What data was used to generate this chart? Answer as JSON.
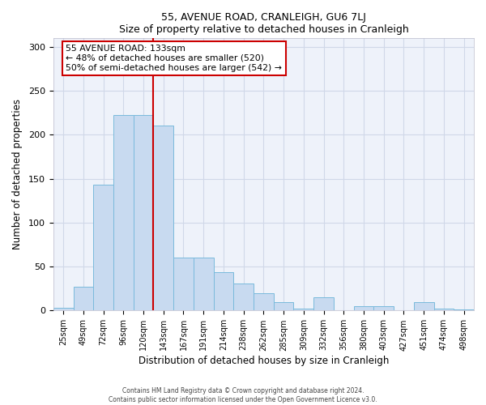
{
  "title": "55, AVENUE ROAD, CRANLEIGH, GU6 7LJ",
  "subtitle": "Size of property relative to detached houses in Cranleigh",
  "xlabel": "Distribution of detached houses by size in Cranleigh",
  "ylabel": "Number of detached properties",
  "bar_labels": [
    "25sqm",
    "49sqm",
    "72sqm",
    "96sqm",
    "120sqm",
    "143sqm",
    "167sqm",
    "191sqm",
    "214sqm",
    "238sqm",
    "262sqm",
    "285sqm",
    "309sqm",
    "332sqm",
    "356sqm",
    "380sqm",
    "403sqm",
    "427sqm",
    "451sqm",
    "474sqm",
    "498sqm"
  ],
  "bar_values": [
    3,
    27,
    143,
    222,
    222,
    210,
    60,
    60,
    44,
    31,
    20,
    10,
    2,
    15,
    0,
    5,
    5,
    0,
    10,
    2,
    1
  ],
  "bar_color": "#c8daf0",
  "bar_edge_color": "#7abadc",
  "vline_color": "#cc0000",
  "annotation_title": "55 AVENUE ROAD: 133sqm",
  "annotation_line1": "← 48% of detached houses are smaller (520)",
  "annotation_line2": "50% of semi-detached houses are larger (542) →",
  "annotation_box_facecolor": "#ffffff",
  "annotation_box_edgecolor": "#cc0000",
  "ylim": [
    0,
    310
  ],
  "yticks": [
    0,
    50,
    100,
    150,
    200,
    250,
    300
  ],
  "bg_color": "#eef2fa",
  "grid_color": "#d0d8e8",
  "footer1": "Contains HM Land Registry data © Crown copyright and database right 2024.",
  "footer2": "Contains public sector information licensed under the Open Government Licence v3.0."
}
